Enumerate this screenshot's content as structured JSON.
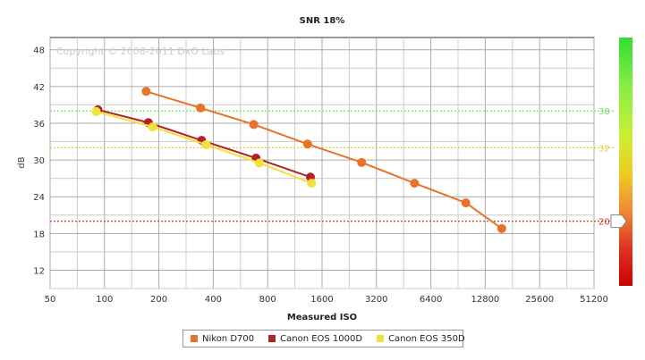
{
  "chart_data": {
    "type": "line",
    "title": "SNR 18%",
    "xlabel": "Measured ISO",
    "ylabel": "dB",
    "watermark": "Copyright © 2008-2011 DxO Labs",
    "x_scale": "log2",
    "xlim": [
      50,
      51200
    ],
    "ylim": [
      9,
      50
    ],
    "x_ticks": [
      50,
      100,
      200,
      400,
      800,
      1600,
      3200,
      6400,
      12800,
      25600,
      51200
    ],
    "y_ticks": [
      12,
      18,
      24,
      30,
      36,
      42,
      48
    ],
    "grid": true,
    "series": [
      {
        "name": "Nikon D700",
        "color": "#E8722A",
        "points": [
          [
            170,
            41.2
          ],
          [
            340,
            38.5
          ],
          [
            670,
            35.8
          ],
          [
            1330,
            32.6
          ],
          [
            2650,
            29.6
          ],
          [
            5200,
            26.2
          ],
          [
            10000,
            23.0
          ],
          [
            15800,
            18.8
          ]
        ]
      },
      {
        "name": "Canon EOS 1000D",
        "color": "#B22222",
        "points": [
          [
            92,
            38.2
          ],
          [
            175,
            36.1
          ],
          [
            345,
            33.2
          ],
          [
            690,
            30.3
          ],
          [
            1380,
            27.2
          ]
        ]
      },
      {
        "name": "Canon EOS 350D",
        "color": "#F2E03C",
        "points": [
          [
            90,
            37.9
          ],
          [
            185,
            35.4
          ],
          [
            365,
            32.5
          ],
          [
            720,
            29.5
          ],
          [
            1400,
            26.2
          ]
        ]
      }
    ],
    "reference_lines": [
      {
        "value": 38,
        "label": "38",
        "color": "#7CE05A"
      },
      {
        "value": 32,
        "label": "32",
        "color": "#E3CF3A"
      },
      {
        "value": 20,
        "label": "20",
        "color": "#D23A2A"
      }
    ],
    "scale_bar": {
      "colors_top_to_bottom": [
        "#33dd33",
        "#88ee44",
        "#ccee33",
        "#eecc22",
        "#ee8833",
        "#dd3322",
        "#cc0000"
      ],
      "marker_value": 20
    }
  }
}
